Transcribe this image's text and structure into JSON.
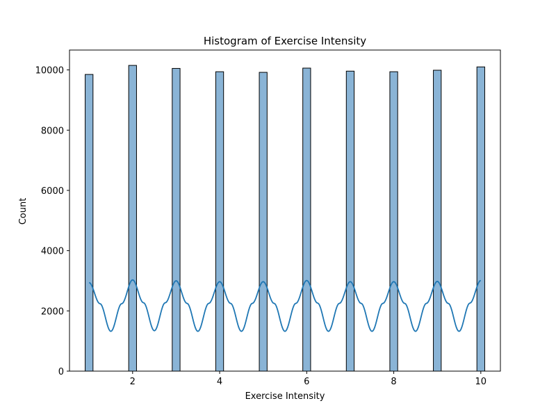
{
  "chart_data": {
    "type": "bar",
    "title": "Histogram of Exercise Intensity",
    "xlabel": "Exercise Intensity",
    "ylabel": "Count",
    "xlim": [
      0.55,
      10.45
    ],
    "ylim": [
      0,
      10660
    ],
    "xticks": [
      2,
      4,
      6,
      8,
      10
    ],
    "yticks": [
      0,
      2000,
      4000,
      6000,
      8000,
      10000
    ],
    "bin_width": 0.18,
    "bars": [
      {
        "x": 1,
        "count": 9850
      },
      {
        "x": 2,
        "count": 10150
      },
      {
        "x": 3,
        "count": 10050
      },
      {
        "x": 4,
        "count": 9940
      },
      {
        "x": 5,
        "count": 9920
      },
      {
        "x": 6,
        "count": 10060
      },
      {
        "x": 7,
        "count": 9960
      },
      {
        "x": 8,
        "count": 9940
      },
      {
        "x": 9,
        "count": 9990
      },
      {
        "x": 10,
        "count": 10100
      }
    ],
    "kde_line": {
      "x": [
        1,
        1.25,
        1.5,
        1.75,
        2,
        2.25,
        2.5,
        2.75,
        3,
        3.25,
        3.5,
        3.75,
        4,
        4.25,
        4.5,
        4.75,
        5,
        5.25,
        5.5,
        5.75,
        6,
        6.25,
        6.5,
        6.75,
        7,
        7.25,
        7.5,
        7.75,
        8,
        8.25,
        8.5,
        8.75,
        9,
        9.25,
        9.5,
        9.75,
        10
      ],
      "y": [
        2940,
        2240,
        1320,
        2240,
        3030,
        2270,
        1340,
        2270,
        3000,
        2250,
        1320,
        2250,
        2970,
        2250,
        1320,
        2250,
        2970,
        2250,
        1320,
        2250,
        3010,
        2260,
        1320,
        2250,
        2970,
        2250,
        1320,
        2250,
        2970,
        2250,
        1320,
        2250,
        2980,
        2250,
        1320,
        2260,
        3010
      ]
    },
    "grid": false,
    "colors": {
      "bar_fill": "#8ab4d6",
      "bar_edge": "#000000",
      "line": "#1f77b4"
    }
  }
}
